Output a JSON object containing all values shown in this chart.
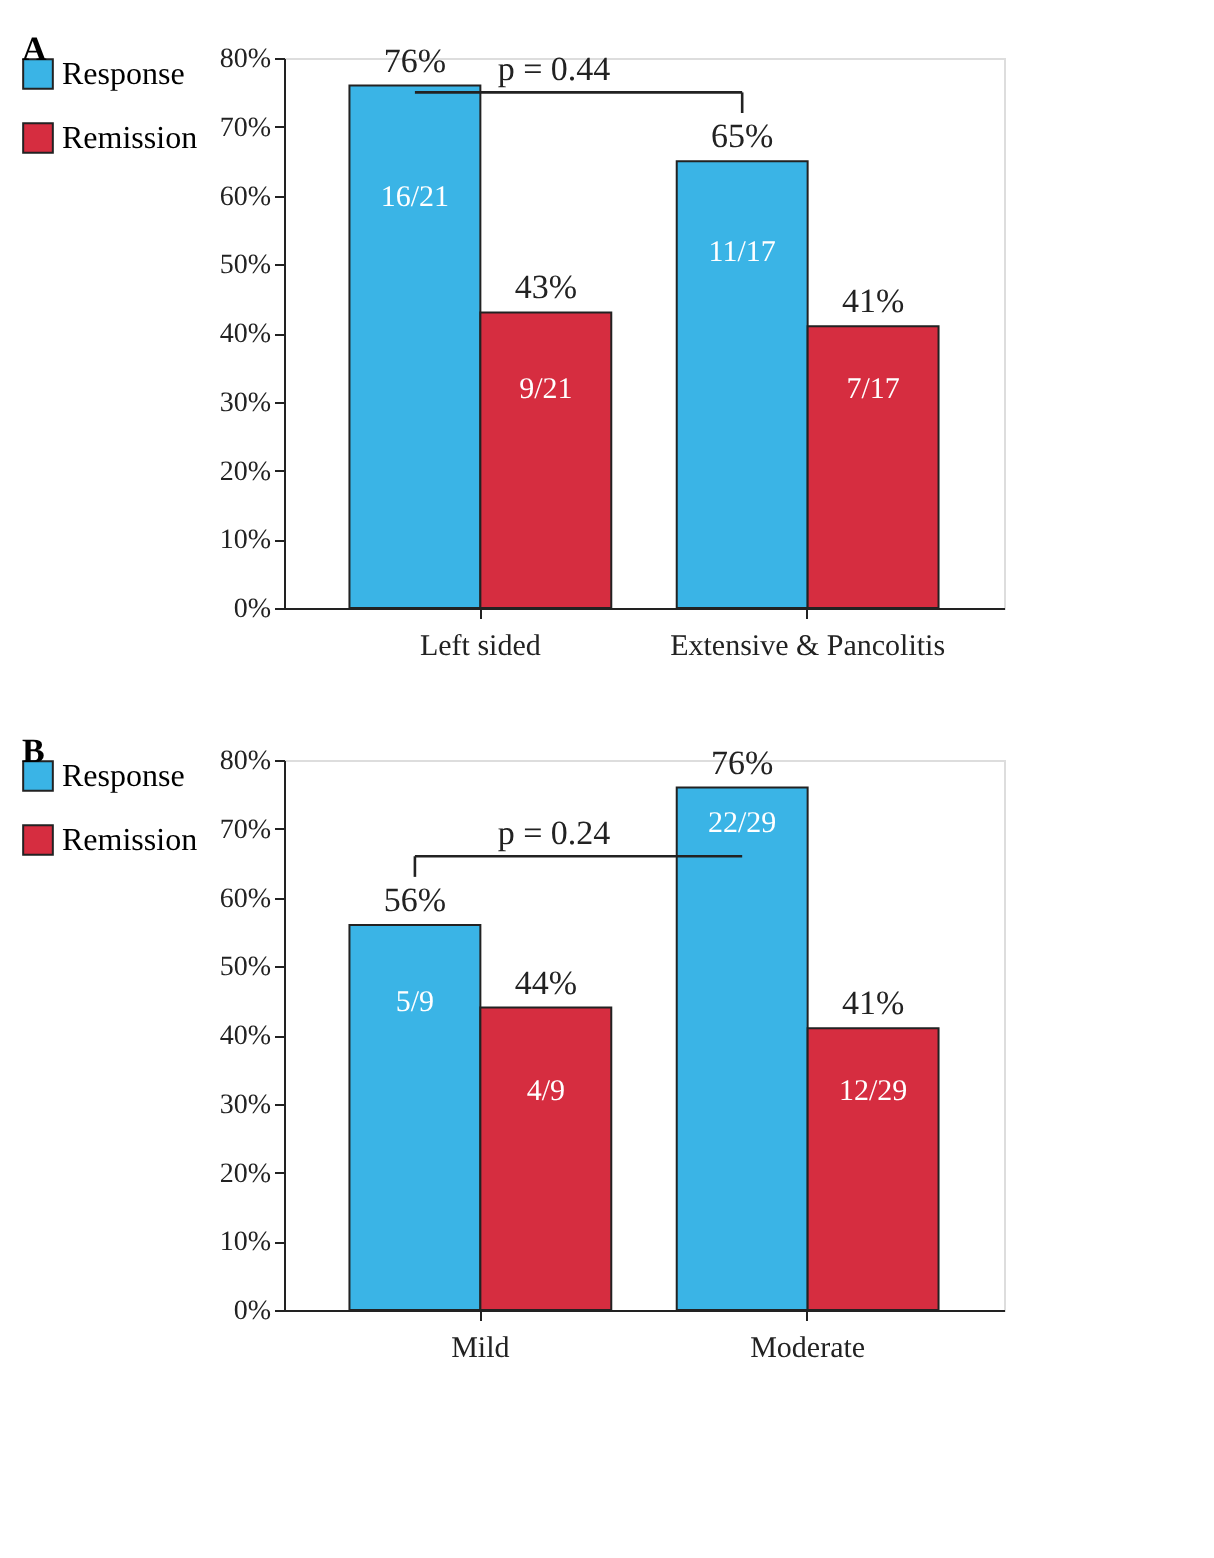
{
  "chart_data": [
    {
      "type": "bar",
      "title": "A",
      "categories": [
        "Left sided",
        "Extensive & Pancolitis"
      ],
      "series": [
        {
          "name": "Response",
          "color": "#3ab4e6",
          "values": [
            76,
            65
          ],
          "value_labels": [
            "76%",
            "65%"
          ]
        },
        {
          "name": "Remission",
          "color": "#d62d40",
          "values": [
            43,
            41
          ],
          "value_labels": [
            "43%",
            "41%"
          ]
        }
      ],
      "ylim": [
        0,
        80
      ],
      "yticks": [
        {
          "value": 0,
          "label": "0%"
        },
        {
          "value": 10,
          "label": "10%"
        },
        {
          "value": 20,
          "label": "20%"
        },
        {
          "value": 30,
          "label": "30%"
        },
        {
          "value": 40,
          "label": "40%"
        },
        {
          "value": 50,
          "label": "50%"
        },
        {
          "value": 60,
          "label": "60%"
        },
        {
          "value": 70,
          "label": "70%"
        },
        {
          "value": 80,
          "label": "80%"
        }
      ],
      "annotations": [
        "p = 0.44",
        {
          "text": "16/21",
          "x": "Left sided",
          "y": 60
        },
        {
          "text": "9/21",
          "x": "Left sided",
          "y": 32
        },
        {
          "text": "11/17",
          "x": "Extensive & Pancolitis",
          "y": 52
        },
        {
          "text": "7/17",
          "x": "Extensive & Pancolitis",
          "y": 32
        }
      ],
      "legend": "left",
      "grid": false
    },
    {
      "type": "bar",
      "title": "B",
      "categories": [
        "Mild",
        "Moderate"
      ],
      "series": [
        {
          "name": "Response",
          "color": "#3ab4e6",
          "values": [
            56,
            76
          ],
          "value_labels": [
            "56%",
            "76%"
          ]
        },
        {
          "name": "Remission",
          "color": "#d62d40",
          "values": [
            44,
            41
          ],
          "value_labels": [
            "44%",
            "41%"
          ]
        }
      ],
      "ylim": [
        0,
        80
      ],
      "yticks": [
        {
          "value": 0,
          "label": "0%"
        },
        {
          "value": 10,
          "label": "10%"
        },
        {
          "value": 20,
          "label": "20%"
        },
        {
          "value": 30,
          "label": "30%"
        },
        {
          "value": 40,
          "label": "40%"
        },
        {
          "value": 50,
          "label": "50%"
        },
        {
          "value": 60,
          "label": "60%"
        },
        {
          "value": 70,
          "label": "70%"
        },
        {
          "value": 80,
          "label": "80%"
        }
      ],
      "annotations": [
        "p = 0.24",
        {
          "text": "5/9",
          "x": "Mild",
          "y": 45
        },
        {
          "text": "4/9",
          "x": "Mild",
          "y": 32
        },
        {
          "text": "22/29",
          "x": "Moderate",
          "y": 71
        },
        {
          "text": "12/29",
          "x": "Moderate",
          "y": 32
        }
      ],
      "legend": "left",
      "grid": false
    }
  ]
}
